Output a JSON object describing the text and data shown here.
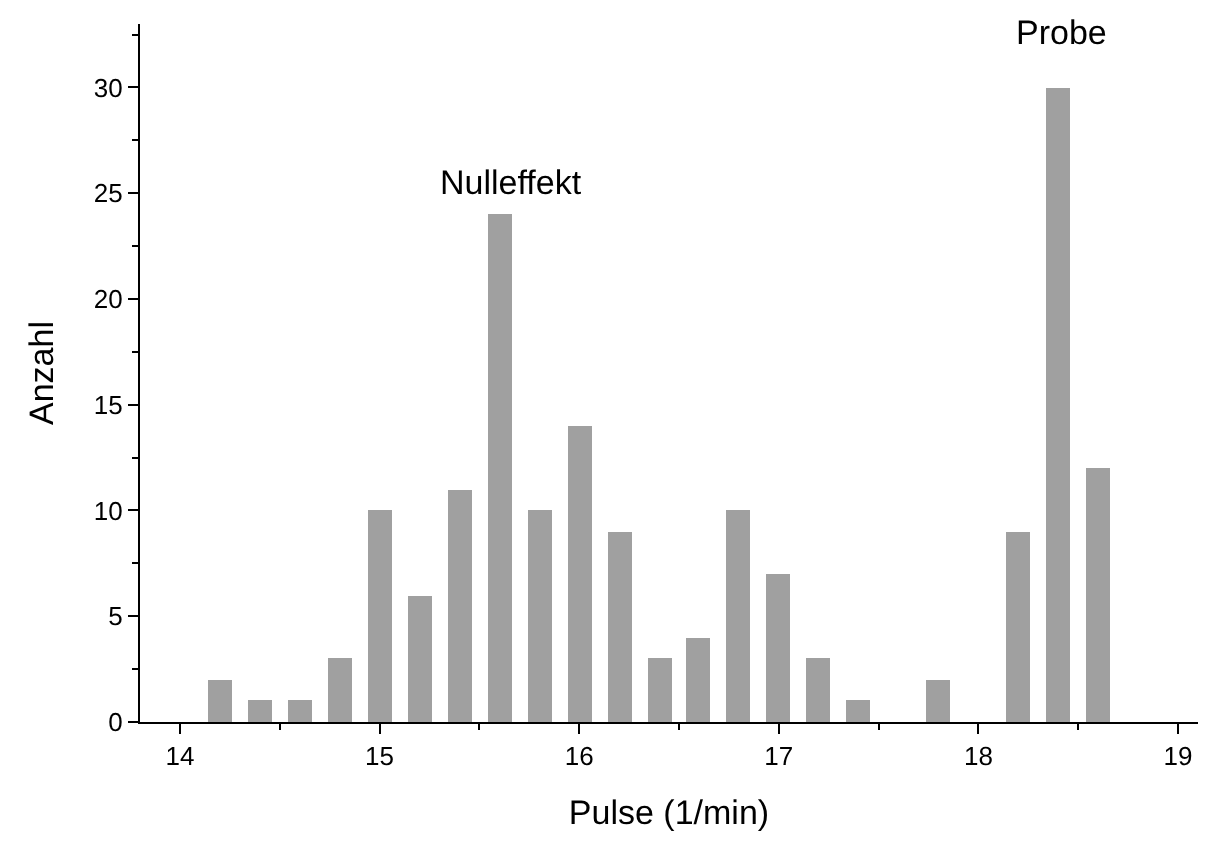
{
  "chart_data": {
    "type": "bar",
    "xlabel": "Pulse (1/min)",
    "ylabel": "Anzahl",
    "x": [
      14.2,
      14.4,
      14.6,
      14.8,
      15.0,
      15.2,
      15.4,
      15.6,
      15.8,
      16.0,
      16.2,
      16.4,
      16.6,
      16.8,
      17.0,
      17.2,
      17.4,
      17.6,
      17.8,
      18.0,
      18.2,
      18.4,
      18.6
    ],
    "values": [
      2,
      1,
      1,
      3,
      10,
      6,
      11,
      24,
      10,
      14,
      9,
      3,
      4,
      10,
      7,
      3,
      1,
      0,
      2,
      0,
      9,
      30,
      12
    ],
    "color": "#a0a0a0",
    "xlim": [
      13.8,
      19.1
    ],
    "xticks": [
      14,
      15,
      16,
      17,
      18,
      19
    ],
    "ylim": [
      0,
      33
    ],
    "yticks": [
      0,
      5,
      10,
      15,
      20,
      25,
      30
    ],
    "annotations": [
      "Nulleffekt",
      "Probe"
    ]
  }
}
